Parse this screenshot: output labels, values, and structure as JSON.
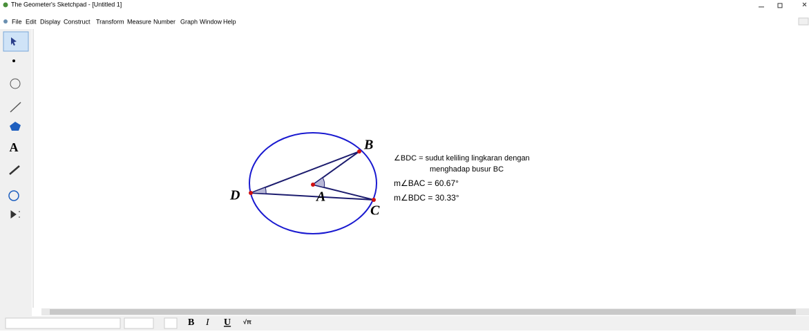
{
  "window": {
    "title": "The Geometer's Sketchpad - [Untitled 1]"
  },
  "menu": [
    "File",
    "Edit",
    "Display",
    "Construct",
    "Transform",
    "Measure",
    "Number",
    "Graph",
    "Window",
    "Help"
  ],
  "toolbox": {
    "text_tool": "A"
  },
  "sketch": {
    "points": [
      {
        "label": "B"
      },
      {
        "label": "D"
      },
      {
        "label": "A"
      },
      {
        "label": "C"
      }
    ],
    "notes": [
      "∠BDC = sudut keliling lingkaran dengan",
      "menghadap busur BC"
    ],
    "measurements": [
      "m∠BAC = 60.67°",
      "m∠BDC = 30.33°"
    ]
  },
  "format_bar": {
    "buttons": [
      "B",
      "I",
      "U"
    ]
  }
}
